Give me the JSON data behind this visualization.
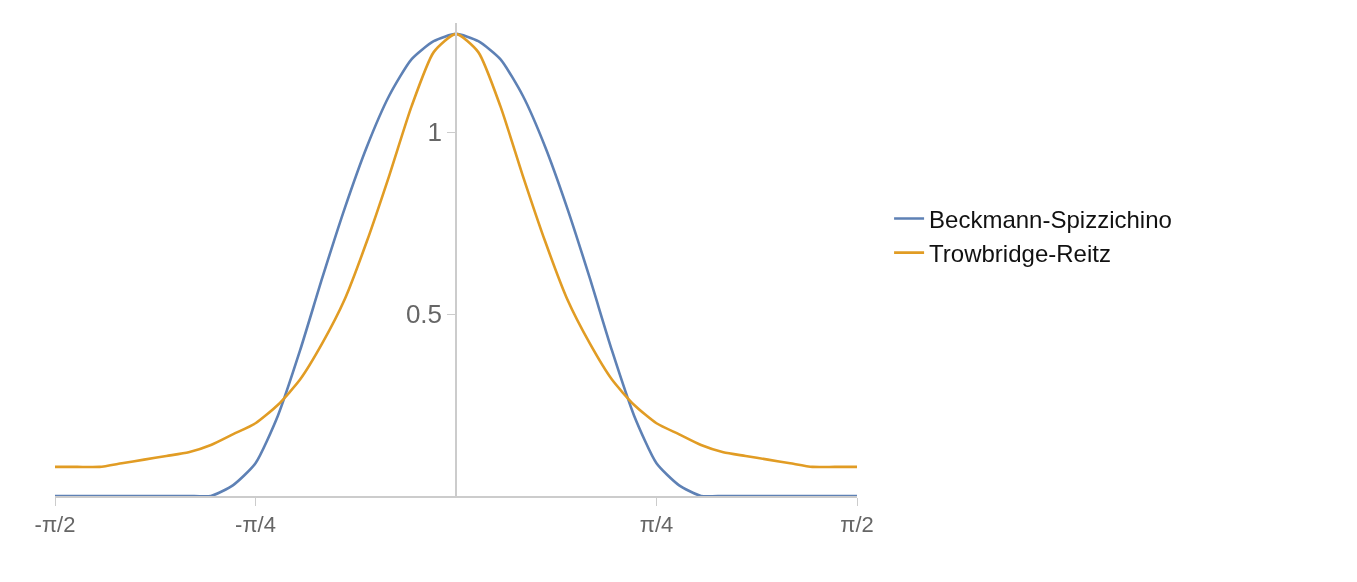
{
  "chart_data": {
    "type": "line",
    "x": [
      -1.5708,
      -1.4835,
      -1.3963,
      -1.309,
      -1.2217,
      -1.1345,
      -1.0472,
      -0.9599,
      -0.8727,
      -0.7854,
      -0.6981,
      -0.6109,
      -0.5236,
      -0.4363,
      -0.3491,
      -0.2618,
      -0.1745,
      -0.0873,
      0,
      0.0873,
      0.1745,
      0.2618,
      0.3491,
      0.4363,
      0.5236,
      0.6109,
      0.6981,
      0.7854,
      0.8727,
      0.9599,
      1.0472,
      1.1345,
      1.2217,
      1.309,
      1.3963,
      1.4835,
      1.5708
    ],
    "series": [
      {
        "name": "Beckmann-Spizzichino",
        "color": "#5e81b5",
        "values": [
          0,
          0,
          0,
          0,
          0,
          0,
          0,
          0,
          0.03,
          0.09,
          0.22,
          0.4,
          0.6,
          0.79,
          0.96,
          1.1,
          1.2,
          1.25,
          1.27,
          1.25,
          1.2,
          1.1,
          0.96,
          0.79,
          0.6,
          0.4,
          0.22,
          0.09,
          0.03,
          0,
          0,
          0,
          0,
          0,
          0,
          0,
          0
        ]
      },
      {
        "name": "Trowbridge-Reitz",
        "color": "#e19c24",
        "values": [
          0.08,
          0.08,
          0.08,
          0.09,
          0.1,
          0.11,
          0.12,
          0.14,
          0.17,
          0.2,
          0.25,
          0.32,
          0.42,
          0.54,
          0.7,
          0.88,
          1.07,
          1.22,
          1.27,
          1.22,
          1.07,
          0.88,
          0.7,
          0.54,
          0.42,
          0.32,
          0.25,
          0.2,
          0.17,
          0.14,
          0.12,
          0.11,
          0.1,
          0.09,
          0.08,
          0.08,
          0.08
        ]
      }
    ],
    "xlim": [
      -1.5708,
      1.5708
    ],
    "xticks": [
      {
        "value": -1.5708,
        "label": "-π/2"
      },
      {
        "value": -0.7854,
        "label": "-π/4"
      },
      {
        "value": 0.7854,
        "label": "π/4"
      },
      {
        "value": 1.5708,
        "label": "π/2"
      }
    ],
    "ylim": [
      0,
      1.3
    ],
    "yticks": [
      0.5,
      1
    ],
    "grid": false,
    "legend": "right",
    "marker": "none",
    "line_style": "solid"
  }
}
